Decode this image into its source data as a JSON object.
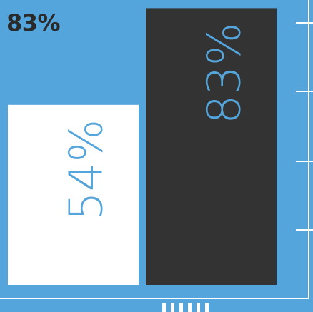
{
  "headline": "83%",
  "chart_data": {
    "type": "bar",
    "categories": [
      "",
      ""
    ],
    "values": [
      54,
      83
    ],
    "data_labels": [
      "54%",
      "83%"
    ],
    "ylim": [
      0,
      100
    ],
    "grid": false,
    "bar_colors": [
      "#ffffff",
      "#333333"
    ],
    "label_colors": [
      "#55a5dd",
      "#55a5dd"
    ]
  },
  "colors": {
    "background": "#55a5dd",
    "headline": "#2a2a2a",
    "axis": "#ffffff"
  }
}
